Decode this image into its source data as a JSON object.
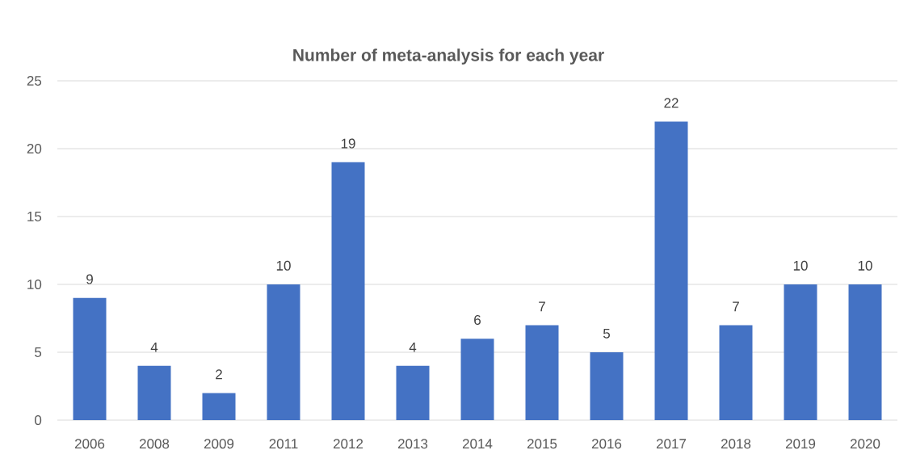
{
  "chart_data": {
    "type": "bar",
    "title": "Number of meta-analysis for each year",
    "categories": [
      "2006",
      "2008",
      "2009",
      "2011",
      "2012",
      "2013",
      "2014",
      "2015",
      "2016",
      "2017",
      "2018",
      "2019",
      "2020"
    ],
    "values": [
      9,
      4,
      2,
      10,
      19,
      4,
      6,
      7,
      5,
      22,
      7,
      10,
      10
    ],
    "color": "#4472c4",
    "ylim": [
      0,
      25
    ],
    "yticks": [
      0,
      5,
      10,
      15,
      20,
      25
    ],
    "grid": "y",
    "data_labels": true
  }
}
